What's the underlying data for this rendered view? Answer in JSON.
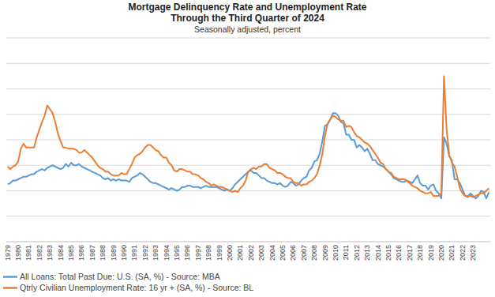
{
  "chart_data": {
    "type": "line",
    "title": [
      "Mortgage Delinquency Rate and Unemployment Rate",
      "Through the Third Quarter of 2024"
    ],
    "subtitle": "Seasonally adjusted, percent",
    "categories": [
      "1979",
      null,
      null,
      null,
      "1980",
      null,
      null,
      null,
      "1981",
      null,
      null,
      null,
      "1982",
      null,
      null,
      null,
      "1983",
      null,
      null,
      null,
      "1984",
      null,
      null,
      null,
      "1985",
      null,
      null,
      null,
      "1986",
      null,
      null,
      null,
      "1987",
      null,
      null,
      null,
      "1988",
      null,
      null,
      null,
      "1989",
      null,
      null,
      null,
      "1990",
      null,
      null,
      null,
      "1991",
      null,
      null,
      null,
      "1992",
      null,
      null,
      null,
      "1993",
      null,
      null,
      null,
      "1994",
      null,
      null,
      null,
      "1995",
      null,
      null,
      null,
      "1996",
      null,
      null,
      null,
      "1997",
      null,
      null,
      null,
      "1998",
      null,
      null,
      null,
      "1999",
      null,
      null,
      null,
      "2000",
      null,
      null,
      null,
      "2001",
      null,
      null,
      null,
      "2002",
      null,
      null,
      null,
      "2003",
      null,
      null,
      null,
      "2004",
      null,
      null,
      null,
      "2005",
      null,
      null,
      null,
      "2006",
      null,
      null,
      null,
      "2007",
      null,
      null,
      null,
      "2008",
      null,
      null,
      null,
      "2009",
      null,
      null,
      null,
      "2010",
      null,
      null,
      null,
      "2011",
      null,
      null,
      null,
      "2012",
      null,
      null,
      null,
      "2013",
      null,
      null,
      null,
      "2014",
      null,
      null,
      null,
      "2015",
      null,
      null,
      null,
      "2016",
      null,
      null,
      null,
      "2017",
      null,
      null,
      null,
      "2018",
      null,
      null,
      null,
      "2019",
      null,
      null,
      null,
      "2020",
      null,
      null,
      null,
      "2021",
      null,
      null,
      null,
      "2022",
      null,
      null,
      null,
      "2023",
      null,
      null,
      null,
      null,
      null,
      null
    ],
    "series": [
      {
        "name": "All Loans: Total Past Due: U.S. (SA, %) - Source: MBA",
        "color": "#5b9bd5",
        "values": [
          4.5,
          4.6,
          4.8,
          4.8,
          4.9,
          5.0,
          5.1,
          5.1,
          5.2,
          5.3,
          5.3,
          5.5,
          5.6,
          5.7,
          5.6,
          5.8,
          5.9,
          6.0,
          5.9,
          5.8,
          5.7,
          5.8,
          6.1,
          5.9,
          6.2,
          6.0,
          6.0,
          6.1,
          5.9,
          5.8,
          5.7,
          5.6,
          5.5,
          5.4,
          5.3,
          5.2,
          5.0,
          4.9,
          5.0,
          4.8,
          4.9,
          4.8,
          4.9,
          4.8,
          4.8,
          4.8,
          4.7,
          5.0,
          5.1,
          5.2,
          5.4,
          5.3,
          5.1,
          4.9,
          4.7,
          4.6,
          4.6,
          4.5,
          4.4,
          4.3,
          4.2,
          4.1,
          4.2,
          4.1,
          4.0,
          4.1,
          4.3,
          4.3,
          4.4,
          4.4,
          4.3,
          4.3,
          4.3,
          4.2,
          4.3,
          4.4,
          4.3,
          4.3,
          4.3,
          4.3,
          4.2,
          4.1,
          4.0,
          4.1,
          4.0,
          4.2,
          4.5,
          4.7,
          4.9,
          5.1,
          5.3,
          5.5,
          5.6,
          5.4,
          5.4,
          5.2,
          5.0,
          5.0,
          4.8,
          4.7,
          4.6,
          4.6,
          4.5,
          4.6,
          4.4,
          4.3,
          4.4,
          4.7,
          4.6,
          4.4,
          4.5,
          4.8,
          5.0,
          5.1,
          5.6,
          5.8,
          6.3,
          6.4,
          6.9,
          7.9,
          9.1,
          9.2,
          9.6,
          10.1,
          10.1,
          9.9,
          9.4,
          9.3,
          8.4,
          8.4,
          8.0,
          8.0,
          7.4,
          7.6,
          7.4,
          7.1,
          7.3,
          6.9,
          6.4,
          6.4,
          6.1,
          6.0,
          5.9,
          5.7,
          5.5,
          5.3,
          5.0,
          4.9,
          4.8,
          4.7,
          4.7,
          4.8,
          4.7,
          4.6,
          4.9,
          5.2,
          4.6,
          4.4,
          4.4,
          4.1,
          4.4,
          4.5,
          4.0,
          3.8,
          3.4,
          8.2,
          7.7,
          6.7,
          6.4,
          4.9,
          4.9,
          4.6,
          4.1,
          3.6,
          3.5,
          3.8,
          3.6,
          3.4,
          3.6,
          4.0,
          3.9,
          3.4,
          3.9
        ]
      },
      {
        "name": "Qtrly Civilian Unemployment Rate: 16 yr + (SA, %) - Source: BL",
        "color": "#ed7d31",
        "values": [
          5.9,
          5.7,
          5.9,
          6.0,
          6.3,
          7.3,
          7.7,
          7.4,
          7.4,
          7.4,
          7.4,
          8.2,
          8.8,
          9.4,
          9.9,
          10.7,
          10.4,
          10.1,
          9.4,
          8.5,
          7.9,
          7.4,
          7.4,
          7.3,
          7.3,
          7.3,
          7.2,
          7.0,
          7.0,
          7.2,
          7.0,
          6.8,
          6.6,
          6.3,
          6.0,
          5.8,
          5.7,
          5.5,
          5.5,
          5.3,
          5.2,
          5.2,
          5.2,
          5.4,
          5.3,
          5.3,
          5.7,
          6.1,
          6.6,
          6.8,
          6.9,
          7.1,
          7.4,
          7.6,
          7.6,
          7.4,
          7.2,
          7.1,
          6.8,
          6.6,
          6.6,
          6.2,
          6.0,
          5.6,
          5.5,
          5.7,
          5.7,
          5.6,
          5.5,
          5.5,
          5.3,
          5.3,
          5.2,
          5.0,
          4.9,
          4.7,
          4.6,
          4.4,
          4.5,
          4.4,
          4.3,
          4.3,
          4.2,
          4.1,
          4.0,
          3.9,
          4.0,
          3.9,
          4.2,
          4.4,
          4.8,
          5.5,
          5.7,
          5.8,
          5.7,
          5.9,
          5.9,
          6.1,
          6.1,
          5.8,
          5.7,
          5.6,
          5.4,
          5.4,
          5.3,
          5.1,
          5.0,
          5.0,
          4.7,
          4.6,
          4.6,
          4.4,
          4.5,
          4.5,
          4.7,
          4.8,
          5.0,
          5.3,
          6.0,
          6.9,
          8.3,
          9.3,
          9.6,
          9.9,
          9.8,
          9.6,
          9.5,
          9.5,
          9.0,
          9.1,
          9.0,
          8.6,
          8.3,
          8.2,
          8.0,
          7.8,
          7.7,
          7.5,
          7.2,
          6.9,
          6.6,
          6.2,
          6.1,
          5.7,
          5.5,
          5.4,
          5.1,
          5.0,
          4.9,
          4.9,
          4.9,
          4.8,
          4.6,
          4.4,
          4.3,
          4.2,
          4.0,
          3.9,
          3.8,
          3.8,
          3.9,
          3.6,
          3.6,
          3.6,
          3.8,
          13.0,
          8.8,
          6.8,
          6.2,
          5.9,
          5.1,
          4.2,
          3.8,
          3.6,
          3.6,
          3.6,
          3.5,
          3.6,
          3.7,
          3.8,
          3.8,
          4.0,
          4.2
        ]
      }
    ],
    "ylim": [
      0,
      16
    ],
    "yticks": [
      0,
      2,
      4,
      6,
      8,
      10,
      12,
      14,
      16
    ],
    "grid": true,
    "tick_labels": "x",
    "legend": "bottom"
  }
}
